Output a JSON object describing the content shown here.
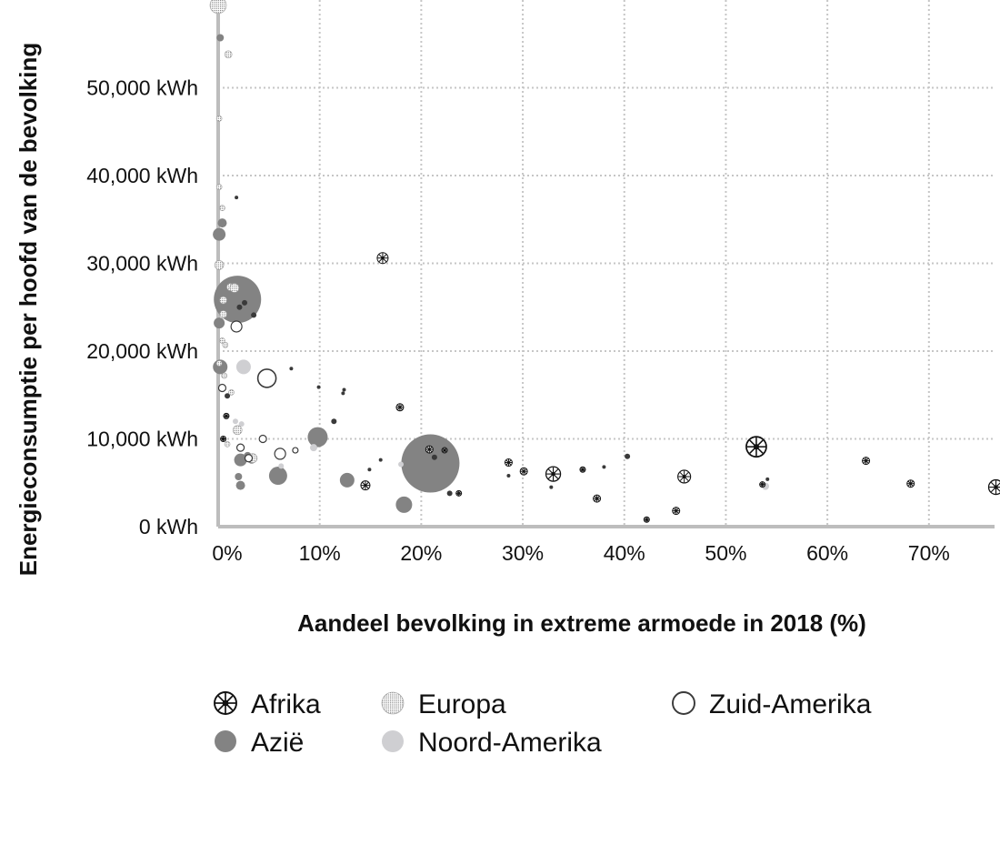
{
  "chart_data": {
    "type": "scatter",
    "title": "",
    "xlabel": "Aandeel bevolking in extreme armoede in 2018 (%)",
    "ylabel": "Energieconsumptie per hoofd van de bevolking",
    "xlim": [
      0,
      77
    ],
    "ylim": [
      0,
      60000
    ],
    "grid": true,
    "x_ticks": [
      {
        "value": 0,
        "label": "0%"
      },
      {
        "value": 10,
        "label": "10%"
      },
      {
        "value": 20,
        "label": "20%"
      },
      {
        "value": 30,
        "label": "30%"
      },
      {
        "value": 40,
        "label": "40%"
      },
      {
        "value": 50,
        "label": "50%"
      },
      {
        "value": 60,
        "label": "60%"
      },
      {
        "value": 70,
        "label": "70%"
      }
    ],
    "y_ticks": [
      {
        "value": 0,
        "label": "0 kWh"
      },
      {
        "value": 10000,
        "label": "10,000 kWh"
      },
      {
        "value": 20000,
        "label": "20,000 kWh"
      },
      {
        "value": 30000,
        "label": "30,000 kWh"
      },
      {
        "value": 40000,
        "label": "40,000 kWh"
      },
      {
        "value": 50000,
        "label": "50,000 kWh"
      }
    ],
    "legend_placement": "bottom",
    "series": [
      {
        "name": "Afrika",
        "style": "africa",
        "points": [
          [
            16.2,
            30600,
            6
          ],
          [
            17.9,
            13600,
            4
          ],
          [
            14.5,
            4700,
            5
          ],
          [
            20.8,
            8800,
            4
          ],
          [
            22.3,
            8700,
            3
          ],
          [
            23.7,
            3800,
            3
          ],
          [
            28.6,
            7300,
            4
          ],
          [
            30.1,
            6300,
            4
          ],
          [
            33.0,
            6000,
            8
          ],
          [
            35.9,
            6500,
            3
          ],
          [
            37.3,
            3200,
            4
          ],
          [
            42.2,
            800,
            3
          ],
          [
            45.1,
            1800,
            4
          ],
          [
            45.9,
            5700,
            7
          ],
          [
            53.0,
            9100,
            11
          ],
          [
            53.6,
            4800,
            3
          ],
          [
            63.8,
            7500,
            4
          ],
          [
            68.2,
            4900,
            4
          ],
          [
            76.6,
            4500,
            8
          ],
          [
            0.8,
            12600,
            3
          ],
          [
            0.5,
            10000,
            3
          ]
        ]
      },
      {
        "name": "Europa",
        "style": "europe",
        "points": [
          [
            0.0,
            59400,
            9
          ],
          [
            1.0,
            53800,
            4
          ],
          [
            0.1,
            46500,
            3
          ],
          [
            0.1,
            38700,
            3
          ],
          [
            0.4,
            36300,
            3
          ],
          [
            0.1,
            29800,
            5
          ],
          [
            1.2,
            27300,
            4
          ],
          [
            1.6,
            27200,
            5
          ],
          [
            0.5,
            25800,
            4
          ],
          [
            0.5,
            24200,
            4
          ],
          [
            0.4,
            21200,
            3
          ],
          [
            0.7,
            20700,
            3
          ],
          [
            0.1,
            18600,
            3
          ],
          [
            0.6,
            17200,
            3
          ],
          [
            1.3,
            15300,
            3
          ],
          [
            1.9,
            11000,
            5
          ],
          [
            0.9,
            9400,
            3
          ],
          [
            3.4,
            7800,
            5
          ]
        ]
      },
      {
        "name": "Azië",
        "style": "asia",
        "points": [
          [
            0.2,
            55700,
            4
          ],
          [
            0.4,
            34600,
            5
          ],
          [
            0.1,
            33300,
            7
          ],
          [
            1.9,
            25900,
            26
          ],
          [
            0.1,
            23200,
            6
          ],
          [
            0.2,
            18200,
            8
          ],
          [
            9.8,
            10200,
            11
          ],
          [
            20.9,
            7200,
            32
          ],
          [
            5.9,
            5800,
            10
          ],
          [
            12.7,
            5300,
            8
          ],
          [
            18.3,
            2500,
            9
          ],
          [
            2.2,
            7600,
            7
          ],
          [
            2.0,
            5700,
            4
          ],
          [
            2.2,
            4700,
            5
          ],
          [
            2.9,
            8100,
            4
          ],
          [
            3.3,
            7700,
            5
          ],
          [
            11.4,
            12000,
            3
          ],
          [
            0.9,
            14900,
            3
          ],
          [
            22.8,
            3800,
            3
          ],
          [
            1.8,
            37500,
            2
          ],
          [
            2.6,
            25500,
            3
          ],
          [
            3.5,
            24100,
            3
          ],
          [
            2.1,
            25000,
            3
          ],
          [
            4.8,
            16100,
            2
          ],
          [
            7.2,
            18000,
            2
          ],
          [
            9.9,
            15900,
            2
          ],
          [
            12.3,
            15200,
            2
          ],
          [
            12.4,
            15600,
            2
          ],
          [
            16.0,
            7600,
            2
          ],
          [
            21.3,
            7900,
            3
          ],
          [
            28.6,
            5800,
            2
          ],
          [
            32.8,
            4500,
            2
          ],
          [
            38.0,
            6800,
            2
          ],
          [
            40.3,
            8000,
            3
          ],
          [
            54.1,
            5400,
            2
          ],
          [
            14.9,
            6500,
            2
          ]
        ]
      },
      {
        "name": "Noord-Amerika",
        "style": "north-america",
        "points": [
          [
            2.5,
            18200,
            8
          ],
          [
            1.7,
            12000,
            3
          ],
          [
            2.3,
            11700,
            3
          ],
          [
            9.4,
            9000,
            4
          ],
          [
            6.2,
            6900,
            3
          ],
          [
            18.0,
            7100,
            3
          ],
          [
            53.9,
            4600,
            4
          ],
          [
            3.4,
            8000,
            3
          ]
        ]
      },
      {
        "name": "Zuid-Amerika",
        "style": "south-america",
        "points": [
          [
            1.8,
            22800,
            6
          ],
          [
            4.8,
            16900,
            10
          ],
          [
            0.4,
            15800,
            4
          ],
          [
            4.4,
            10000,
            4
          ],
          [
            2.2,
            9000,
            4
          ],
          [
            6.1,
            8300,
            6
          ],
          [
            7.6,
            8700,
            3
          ],
          [
            3.0,
            7800,
            4
          ]
        ]
      }
    ]
  }
}
